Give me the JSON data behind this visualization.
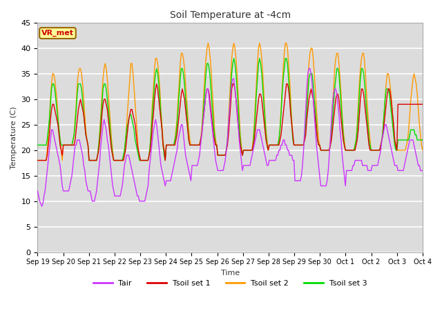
{
  "title": "Soil Temperature at -4cm",
  "xlabel": "Time",
  "ylabel": "Temperature (C)",
  "ylim": [
    0,
    45
  ],
  "yticks": [
    0,
    5,
    10,
    15,
    20,
    25,
    30,
    35,
    40,
    45
  ],
  "fig_bg_color": "#ffffff",
  "plot_bg_color": "#dcdcdc",
  "grid_color": "#c0c0c0",
  "series_colors": {
    "Tair": "#cc33ff",
    "Tsoil_set1": "#dd0000",
    "Tsoil_set2": "#ff9900",
    "Tsoil_set3": "#00dd00"
  },
  "annotation_text": "VR_met",
  "annotation_color": "#cc0000",
  "annotation_bg": "#ffff99",
  "annotation_border": "#996600",
  "n_days": 15,
  "xtick_labels": [
    "Sep 19",
    "Sep 20",
    "Sep 21",
    "Sep 22",
    "Sep 23",
    "Sep 24",
    "Sep 25",
    "Sep 26",
    "Sep 27",
    "Sep 28",
    "Sep 29",
    "Sep 30",
    "Oct 1",
    "Oct 2",
    "Oct 3",
    "Oct 4"
  ],
  "line_width": 1.0,
  "tair_data": [
    12,
    11,
    10,
    9.5,
    9,
    9.5,
    11,
    12,
    14,
    16,
    18,
    20,
    22,
    24,
    24,
    23,
    22,
    21,
    20,
    19,
    18,
    17,
    15,
    13,
    12,
    12,
    12,
    12,
    12,
    12,
    13,
    14,
    15,
    17,
    19,
    21,
    21,
    22,
    22,
    22,
    21,
    20,
    19,
    17,
    16,
    14,
    13,
    12,
    12,
    12,
    11,
    10,
    10,
    10,
    11,
    12,
    14,
    16,
    18,
    21,
    23,
    25,
    26,
    25,
    24,
    22,
    21,
    19,
    17,
    15,
    13,
    12,
    11,
    11,
    11,
    11,
    11,
    11,
    12,
    13,
    15,
    17,
    18,
    19,
    19,
    19,
    18,
    17,
    16,
    15,
    14,
    13,
    12,
    11,
    11,
    10,
    10,
    10,
    10,
    10,
    10,
    11,
    12,
    13,
    16,
    18,
    20,
    22,
    24,
    25,
    26,
    25,
    23,
    21,
    19,
    17,
    16,
    15,
    14,
    13,
    14,
    14,
    14,
    14,
    14,
    15,
    16,
    17,
    18,
    19,
    20,
    22,
    23,
    24,
    25,
    25,
    23,
    21,
    19,
    18,
    17,
    16,
    15,
    14,
    17,
    17,
    17,
    17,
    17,
    17,
    18,
    19,
    21,
    23,
    25,
    27,
    29,
    31,
    32,
    32,
    30,
    28,
    26,
    24,
    22,
    20,
    18,
    17,
    16,
    16,
    16,
    16,
    16,
    16,
    17,
    18,
    20,
    22,
    25,
    28,
    31,
    33,
    34,
    34,
    32,
    30,
    27,
    25,
    22,
    20,
    18,
    16,
    17,
    17,
    17,
    17,
    17,
    17,
    17,
    18,
    19,
    20,
    21,
    22,
    23,
    24,
    24,
    24,
    23,
    22,
    21,
    20,
    19,
    18,
    17,
    17,
    18,
    18,
    18,
    18,
    18,
    18,
    18,
    19,
    19,
    20,
    20,
    21,
    21,
    22,
    22,
    21,
    21,
    20,
    20,
    19,
    19,
    19,
    18,
    18,
    14,
    14,
    14,
    14,
    14,
    14,
    15,
    17,
    20,
    24,
    28,
    32,
    35,
    36,
    36,
    35,
    33,
    30,
    27,
    24,
    21,
    19,
    17,
    15,
    13,
    13,
    13,
    13,
    13,
    13,
    14,
    16,
    19,
    22,
    26,
    29,
    31,
    32,
    32,
    31,
    29,
    27,
    24,
    22,
    19,
    17,
    15,
    13,
    16,
    16,
    16,
    16,
    16,
    16,
    17,
    17,
    18,
    18,
    18,
    18,
    18,
    18,
    18,
    17,
    17,
    17,
    17,
    17,
    16,
    16,
    16,
    16,
    17,
    17,
    17,
    17,
    17,
    17,
    18,
    19,
    20,
    22,
    23,
    24,
    25,
    25,
    24,
    23,
    22,
    21,
    20,
    19,
    18,
    17,
    17,
    17,
    16,
    16,
    16,
    16,
    16,
    16,
    17,
    18,
    19,
    20,
    21,
    22,
    22,
    22,
    22,
    21,
    20,
    19,
    18,
    17,
    17,
    16,
    16,
    16
  ],
  "tsoil1_data": [
    18,
    18,
    18,
    18,
    18,
    18,
    18,
    18,
    18,
    19,
    21,
    23,
    26,
    28,
    29,
    29,
    28,
    27,
    26,
    25,
    23,
    21,
    20,
    19,
    21,
    21,
    21,
    21,
    21,
    21,
    21,
    21,
    21,
    21,
    21,
    22,
    24,
    26,
    28,
    29,
    30,
    29,
    28,
    27,
    25,
    23,
    22,
    21,
    18,
    18,
    18,
    18,
    18,
    18,
    18,
    18,
    19,
    20,
    22,
    24,
    27,
    29,
    30,
    30,
    29,
    28,
    26,
    24,
    22,
    20,
    19,
    18,
    18,
    18,
    18,
    18,
    18,
    18,
    18,
    18,
    18,
    19,
    20,
    22,
    24,
    26,
    27,
    28,
    28,
    27,
    26,
    25,
    23,
    21,
    20,
    19,
    18,
    18,
    18,
    18,
    18,
    18,
    18,
    18,
    19,
    20,
    22,
    25,
    27,
    30,
    32,
    33,
    32,
    30,
    28,
    26,
    24,
    21,
    20,
    18,
    21,
    21,
    21,
    21,
    21,
    21,
    21,
    21,
    21,
    22,
    23,
    25,
    27,
    29,
    31,
    32,
    31,
    30,
    28,
    26,
    24,
    22,
    21,
    21,
    21,
    21,
    21,
    21,
    21,
    21,
    21,
    21,
    22,
    23,
    25,
    27,
    29,
    31,
    32,
    32,
    31,
    29,
    27,
    25,
    23,
    22,
    21,
    21,
    19,
    19,
    19,
    19,
    19,
    19,
    19,
    19,
    20,
    21,
    23,
    26,
    29,
    32,
    33,
    33,
    32,
    30,
    28,
    25,
    23,
    21,
    20,
    19,
    20,
    20,
    20,
    20,
    20,
    20,
    20,
    20,
    20,
    21,
    22,
    24,
    26,
    28,
    30,
    31,
    31,
    30,
    28,
    26,
    24,
    22,
    21,
    20,
    21,
    21,
    21,
    21,
    21,
    21,
    21,
    21,
    21,
    21,
    22,
    23,
    25,
    27,
    29,
    31,
    33,
    33,
    32,
    30,
    27,
    25,
    23,
    21,
    21,
    21,
    21,
    21,
    21,
    21,
    21,
    21,
    21,
    22,
    23,
    26,
    28,
    30,
    31,
    32,
    31,
    30,
    28,
    26,
    24,
    22,
    21,
    21,
    20,
    20,
    20,
    20,
    20,
    20,
    20,
    20,
    20,
    21,
    22,
    24,
    26,
    28,
    30,
    31,
    31,
    30,
    28,
    26,
    24,
    22,
    21,
    20,
    20,
    20,
    20,
    20,
    20,
    20,
    20,
    20,
    20,
    21,
    22,
    24,
    27,
    30,
    32,
    32,
    31,
    29,
    27,
    25,
    23,
    21,
    20,
    20,
    20,
    20,
    20,
    20,
    20,
    20,
    20,
    20,
    21,
    22,
    23,
    25,
    27,
    29,
    31,
    32,
    32,
    31,
    29,
    27,
    25,
    22,
    21,
    20,
    29,
    29,
    29,
    29,
    29,
    29,
    29,
    29,
    29,
    29,
    29,
    29,
    29,
    29,
    29,
    29,
    29,
    29,
    29,
    29,
    29,
    29,
    29,
    29
  ],
  "tsoil2_data": [
    18,
    18,
    18,
    18,
    18,
    18,
    18,
    18,
    18,
    20,
    23,
    26,
    30,
    33,
    35,
    35,
    34,
    32,
    30,
    27,
    24,
    22,
    20,
    18,
    21,
    21,
    21,
    21,
    21,
    21,
    21,
    21,
    21,
    22,
    23,
    26,
    29,
    33,
    35,
    36,
    36,
    35,
    33,
    30,
    27,
    24,
    22,
    21,
    18,
    18,
    18,
    18,
    18,
    18,
    18,
    18,
    19,
    21,
    24,
    27,
    31,
    34,
    36,
    37,
    36,
    34,
    31,
    28,
    25,
    22,
    20,
    18,
    18,
    18,
    18,
    18,
    18,
    18,
    18,
    18,
    18,
    20,
    22,
    25,
    28,
    31,
    34,
    37,
    37,
    35,
    32,
    29,
    26,
    23,
    20,
    18,
    18,
    18,
    18,
    18,
    18,
    18,
    18,
    18,
    19,
    21,
    25,
    29,
    32,
    36,
    38,
    38,
    37,
    35,
    32,
    28,
    25,
    22,
    20,
    18,
    21,
    21,
    21,
    21,
    21,
    21,
    21,
    21,
    22,
    24,
    26,
    30,
    33,
    37,
    39,
    39,
    38,
    36,
    33,
    30,
    27,
    24,
    22,
    21,
    21,
    21,
    21,
    21,
    21,
    21,
    21,
    21,
    22,
    24,
    27,
    31,
    35,
    38,
    40,
    41,
    40,
    38,
    35,
    31,
    28,
    24,
    22,
    21,
    19,
    19,
    19,
    19,
    19,
    19,
    19,
    19,
    20,
    22,
    26,
    30,
    34,
    38,
    40,
    41,
    40,
    38,
    35,
    31,
    27,
    23,
    21,
    19,
    20,
    20,
    20,
    20,
    20,
    20,
    20,
    20,
    20,
    22,
    25,
    29,
    33,
    37,
    40,
    41,
    40,
    38,
    35,
    31,
    27,
    24,
    22,
    20,
    21,
    21,
    21,
    21,
    21,
    21,
    21,
    21,
    21,
    22,
    24,
    28,
    32,
    36,
    39,
    41,
    41,
    40,
    37,
    34,
    30,
    26,
    23,
    21,
    21,
    21,
    21,
    21,
    21,
    21,
    21,
    21,
    21,
    23,
    26,
    30,
    34,
    37,
    39,
    40,
    40,
    38,
    35,
    32,
    28,
    25,
    22,
    21,
    20,
    20,
    20,
    20,
    20,
    20,
    20,
    20,
    20,
    22,
    25,
    29,
    32,
    36,
    38,
    39,
    39,
    37,
    34,
    31,
    27,
    24,
    22,
    20,
    20,
    20,
    20,
    20,
    20,
    20,
    20,
    20,
    21,
    22,
    25,
    29,
    33,
    36,
    38,
    39,
    39,
    37,
    34,
    30,
    27,
    24,
    22,
    20,
    20,
    20,
    20,
    20,
    20,
    20,
    20,
    20,
    21,
    22,
    24,
    27,
    30,
    33,
    35,
    35,
    34,
    32,
    30,
    27,
    24,
    22,
    21,
    20,
    20,
    20,
    20,
    20,
    20,
    20,
    20,
    20,
    21,
    22,
    24,
    27,
    30,
    32,
    34,
    35,
    34,
    33,
    31,
    28,
    25,
    23,
    21,
    20
  ],
  "tsoil3_data": [
    21,
    21,
    21,
    21,
    21,
    21,
    21,
    21,
    21,
    22,
    24,
    26,
    29,
    32,
    33,
    33,
    32,
    30,
    28,
    26,
    24,
    22,
    21,
    21,
    21,
    21,
    21,
    21,
    21,
    21,
    21,
    21,
    21,
    22,
    23,
    25,
    28,
    31,
    33,
    33,
    33,
    32,
    30,
    27,
    25,
    23,
    22,
    21,
    18,
    18,
    18,
    18,
    18,
    18,
    18,
    18,
    19,
    21,
    23,
    26,
    29,
    32,
    33,
    33,
    32,
    30,
    28,
    26,
    23,
    21,
    19,
    18,
    18,
    18,
    18,
    18,
    18,
    18,
    18,
    18,
    19,
    20,
    22,
    24,
    25,
    26,
    27,
    27,
    26,
    25,
    24,
    22,
    21,
    20,
    19,
    18,
    18,
    18,
    18,
    18,
    18,
    18,
    18,
    18,
    19,
    21,
    24,
    27,
    30,
    33,
    35,
    36,
    35,
    33,
    30,
    27,
    24,
    21,
    19,
    18,
    21,
    21,
    21,
    21,
    21,
    21,
    21,
    21,
    22,
    23,
    25,
    28,
    31,
    34,
    36,
    36,
    35,
    33,
    30,
    28,
    25,
    22,
    21,
    21,
    21,
    21,
    21,
    21,
    21,
    21,
    21,
    21,
    22,
    23,
    26,
    29,
    32,
    35,
    37,
    37,
    36,
    34,
    31,
    28,
    25,
    23,
    21,
    21,
    19,
    19,
    19,
    19,
    19,
    19,
    19,
    19,
    20,
    22,
    25,
    28,
    32,
    35,
    37,
    38,
    37,
    35,
    32,
    29,
    25,
    22,
    20,
    19,
    20,
    20,
    20,
    20,
    20,
    20,
    20,
    20,
    20,
    21,
    24,
    27,
    31,
    34,
    37,
    38,
    37,
    35,
    32,
    29,
    26,
    23,
    21,
    20,
    21,
    21,
    21,
    21,
    21,
    21,
    21,
    21,
    21,
    22,
    24,
    27,
    31,
    34,
    36,
    38,
    38,
    37,
    34,
    31,
    28,
    25,
    22,
    21,
    21,
    21,
    21,
    21,
    21,
    21,
    21,
    21,
    21,
    22,
    25,
    28,
    31,
    34,
    35,
    35,
    35,
    33,
    30,
    28,
    25,
    22,
    21,
    21,
    20,
    20,
    20,
    20,
    20,
    20,
    20,
    20,
    20,
    21,
    23,
    26,
    29,
    32,
    34,
    36,
    36,
    35,
    32,
    29,
    26,
    23,
    21,
    20,
    20,
    20,
    20,
    20,
    20,
    20,
    20,
    20,
    21,
    22,
    24,
    27,
    31,
    34,
    36,
    36,
    35,
    33,
    30,
    27,
    25,
    22,
    21,
    20,
    20,
    20,
    20,
    20,
    20,
    20,
    20,
    20,
    21,
    22,
    24,
    27,
    30,
    32,
    32,
    32,
    31,
    29,
    27,
    25,
    23,
    21,
    20,
    20,
    22,
    22,
    22,
    22,
    22,
    22,
    22,
    22,
    22,
    22,
    22,
    23,
    24,
    24,
    24,
    24,
    23,
    23,
    22,
    22,
    22,
    22,
    22,
    22
  ]
}
